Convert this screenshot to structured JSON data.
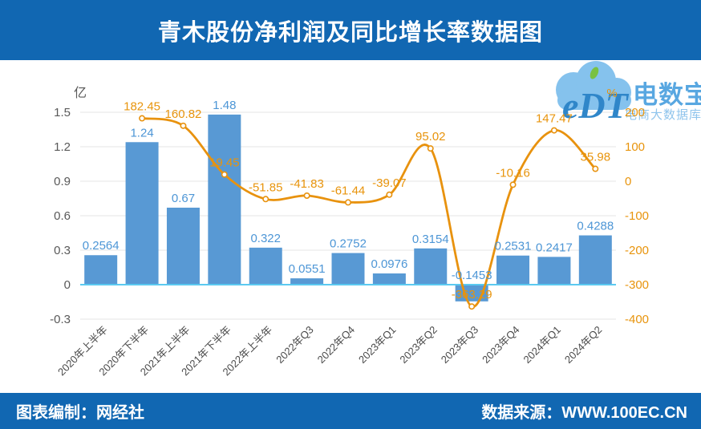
{
  "header": {
    "title": "青木股份净利润及同比增长率数据图"
  },
  "footer": {
    "left": "图表编制：网经社",
    "right": "数据来源：WWW.100EC.CN"
  },
  "watermark": {
    "logo": "eDT",
    "brand": "电数宝",
    "tagline": "电商大数据库"
  },
  "chart_data": {
    "type": "bar+line",
    "title": "青木股份净利润及同比增长率数据图",
    "categories": [
      "2020年上半年",
      "2020年下半年",
      "2021年上半年",
      "2021年下半年",
      "2022年上半年",
      "2022年Q3",
      "2022年Q4",
      "2023年Q1",
      "2023年Q2",
      "2023年Q3",
      "2023年Q4",
      "2024年Q1",
      "2024年Q2"
    ],
    "series": [
      {
        "name": "净利润",
        "type": "bar",
        "unit": "亿",
        "values": [
          0.2564,
          1.24,
          0.67,
          1.48,
          0.322,
          0.0551,
          0.2752,
          0.0976,
          0.3154,
          -0.1453,
          0.2531,
          0.2417,
          0.4288
        ]
      },
      {
        "name": "同比增长率",
        "type": "line",
        "unit": "%",
        "values": [
          null,
          182.45,
          160.82,
          19.45,
          -51.85,
          -41.83,
          -61.44,
          -39.07,
          95.02,
          -363.29,
          -10.16,
          147.47,
          35.98
        ]
      }
    ],
    "left_axis": {
      "unit": "亿",
      "min": -0.3,
      "max": 1.5,
      "step": 0.3
    },
    "right_axis": {
      "unit": "%",
      "min": -400,
      "max": 200,
      "step": 100
    },
    "grid": true,
    "legend": "none",
    "colors": {
      "bar": "#5899D4",
      "bar_label": "#4D96D6",
      "line": "#E8920E",
      "line_label": "#E8940C",
      "left_axis_text": "#595959",
      "right_axis_text": "#E8940C",
      "x_axis_text": "#4A4A4A",
      "gridline": "#E4E4E4",
      "zero_line": "#5BC9F0",
      "banner": "#1167B2",
      "watermark_cloud": "#85C2ED",
      "watermark_text": "#58A7E1",
      "watermark_logo_text": "#2F86C9",
      "watermark_leaf": "#79C143"
    }
  }
}
